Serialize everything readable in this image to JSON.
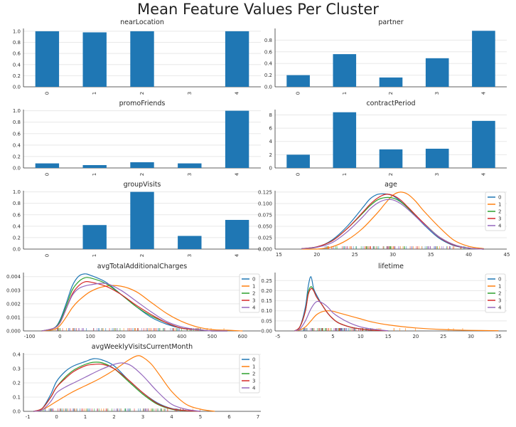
{
  "title": "Mean Feature Values Per Cluster",
  "colors": [
    "#1f77b4",
    "#ff7f0e",
    "#2ca02c",
    "#d62728",
    "#9467bd"
  ],
  "chart_data": [
    {
      "type": "bar",
      "title": "nearLocation",
      "categories": [
        "0",
        "1",
        "2",
        "3",
        "4"
      ],
      "values": [
        1.0,
        0.98,
        1.0,
        0.0,
        1.0
      ],
      "ylim": [
        0,
        1.05
      ],
      "yticks": [
        "0.0",
        "0.2",
        "0.4",
        "0.6",
        "0.8",
        "1.0"
      ],
      "grid": true
    },
    {
      "type": "bar",
      "title": "partner",
      "categories": [
        "0",
        "1",
        "2",
        "3",
        "4"
      ],
      "values": [
        0.2,
        0.56,
        0.16,
        0.49,
        0.96
      ],
      "ylim": [
        0,
        1.0
      ],
      "yticks": [
        "0.0",
        "0.2",
        "0.4",
        "0.6",
        "0.8"
      ],
      "grid": true
    },
    {
      "type": "bar",
      "title": "promoFriends",
      "categories": [
        "0",
        "1",
        "2",
        "3",
        "4"
      ],
      "values": [
        0.08,
        0.05,
        0.1,
        0.08,
        1.0
      ],
      "ylim": [
        0,
        1.02
      ],
      "yticks": [
        "0.0",
        "0.2",
        "0.4",
        "0.6",
        "0.8",
        "1.0"
      ],
      "grid": true
    },
    {
      "type": "bar",
      "title": "contractPeriod",
      "categories": [
        "0",
        "1",
        "2",
        "3",
        "4"
      ],
      "values": [
        2.0,
        8.4,
        2.8,
        2.9,
        7.1
      ],
      "ylim": [
        0,
        8.8
      ],
      "yticks": [
        "0",
        "2",
        "4",
        "6",
        "8"
      ],
      "grid": true
    },
    {
      "type": "bar",
      "title": "groupVisits",
      "categories": [
        "0",
        "1",
        "2",
        "3",
        "4"
      ],
      "values": [
        0.0,
        0.42,
        1.0,
        0.23,
        0.51
      ],
      "ylim": [
        0,
        1.02
      ],
      "yticks": [
        "0.0",
        "0.2",
        "0.4",
        "0.6",
        "0.8",
        "1.0"
      ],
      "grid": true
    },
    {
      "type": "line",
      "title": "age",
      "xlim": [
        14.5,
        45
      ],
      "xticks": [
        "15",
        "20",
        "25",
        "30",
        "35",
        "40",
        "45"
      ],
      "ylim": [
        0,
        0.128
      ],
      "yticks": [
        "0.000",
        "0.025",
        "0.050",
        "0.075",
        "0.100",
        "0.125"
      ],
      "legend": "right",
      "rug": true,
      "series": [
        {
          "name": "0",
          "peak": 29,
          "x": [
            18,
            20,
            22,
            24,
            26,
            27,
            28,
            29,
            30,
            31,
            32,
            34,
            36,
            38,
            40,
            42
          ],
          "y": [
            0.001,
            0.004,
            0.02,
            0.05,
            0.09,
            0.11,
            0.12,
            0.121,
            0.117,
            0.105,
            0.09,
            0.055,
            0.025,
            0.008,
            0.002,
            0.0
          ]
        },
        {
          "name": "1",
          "peak": 31,
          "x": [
            18,
            20,
            22,
            24,
            26,
            28,
            29,
            30,
            31,
            32,
            33,
            34,
            36,
            38,
            40,
            42
          ],
          "y": [
            0.0,
            0.0,
            0.005,
            0.02,
            0.045,
            0.08,
            0.1,
            0.118,
            0.125,
            0.12,
            0.105,
            0.085,
            0.05,
            0.02,
            0.006,
            0.001
          ]
        },
        {
          "name": "2",
          "peak": 29,
          "x": [
            18,
            20,
            22,
            24,
            26,
            27,
            28,
            29,
            30,
            31,
            32,
            34,
            36,
            38,
            40,
            42
          ],
          "y": [
            0.001,
            0.005,
            0.018,
            0.045,
            0.078,
            0.095,
            0.108,
            0.113,
            0.112,
            0.104,
            0.09,
            0.058,
            0.028,
            0.01,
            0.002,
            0.0
          ]
        },
        {
          "name": "3",
          "peak": 29.5,
          "x": [
            18,
            20,
            22,
            24,
            26,
            27,
            28,
            29,
            30,
            31,
            32,
            34,
            36,
            38,
            40,
            42
          ],
          "y": [
            0.001,
            0.005,
            0.018,
            0.045,
            0.08,
            0.098,
            0.112,
            0.12,
            0.118,
            0.108,
            0.092,
            0.058,
            0.027,
            0.009,
            0.002,
            0.0
          ]
        },
        {
          "name": "4",
          "peak": 29.5,
          "x": [
            18,
            20,
            22,
            24,
            26,
            27,
            28,
            29,
            30,
            31,
            32,
            34,
            36,
            38,
            40,
            42
          ],
          "y": [
            0.001,
            0.004,
            0.014,
            0.038,
            0.07,
            0.088,
            0.101,
            0.108,
            0.108,
            0.1,
            0.087,
            0.056,
            0.028,
            0.01,
            0.002,
            0.0
          ]
        }
      ]
    },
    {
      "type": "line",
      "title": "avgTotalAdditionalCharges",
      "xlim": [
        -120,
        660
      ],
      "xticks": [
        "-100",
        "0",
        "100",
        "200",
        "300",
        "400",
        "500",
        "600"
      ],
      "ylim": [
        0,
        0.0043
      ],
      "yticks": [
        "0.000",
        "0.001",
        "0.002",
        "0.003",
        "0.004"
      ],
      "legend": "right",
      "rug": true,
      "series": [
        {
          "name": "0",
          "x": [
            -60,
            -20,
            0,
            20,
            40,
            60,
            80,
            100,
            150,
            200,
            250,
            300,
            350,
            400,
            450,
            500,
            550
          ],
          "y": [
            0.0,
            0.0002,
            0.0008,
            0.002,
            0.0033,
            0.004,
            0.0042,
            0.0041,
            0.0036,
            0.0027,
            0.0018,
            0.001,
            0.0005,
            0.0002,
            0.0001,
            0.0,
            0.0
          ]
        },
        {
          "name": "1",
          "x": [
            -60,
            -20,
            0,
            20,
            40,
            60,
            100,
            150,
            200,
            250,
            300,
            350,
            400,
            450,
            500,
            550,
            600
          ],
          "y": [
            0.0,
            0.0001,
            0.0004,
            0.001,
            0.0017,
            0.0022,
            0.0029,
            0.0033,
            0.0033,
            0.0029,
            0.0021,
            0.0013,
            0.0007,
            0.0003,
            0.0001,
            5e-05,
            0.0
          ]
        },
        {
          "name": "2",
          "x": [
            -60,
            -20,
            0,
            20,
            40,
            60,
            80,
            100,
            150,
            200,
            250,
            300,
            350,
            400,
            450,
            500,
            550
          ],
          "y": [
            0.0,
            0.0002,
            0.0007,
            0.0018,
            0.003,
            0.0036,
            0.0039,
            0.0039,
            0.0035,
            0.0027,
            0.0018,
            0.0011,
            0.0006,
            0.0002,
            0.0001,
            0.0,
            0.0
          ]
        },
        {
          "name": "3",
          "x": [
            -60,
            -20,
            0,
            20,
            40,
            60,
            80,
            100,
            150,
            200,
            250,
            300,
            350,
            400,
            450,
            500,
            550
          ],
          "y": [
            0.0,
            0.0002,
            0.0006,
            0.0016,
            0.0027,
            0.0033,
            0.0036,
            0.0036,
            0.0033,
            0.0027,
            0.0019,
            0.0012,
            0.0006,
            0.0002,
            0.0001,
            0.0,
            0.0
          ]
        },
        {
          "name": "4",
          "x": [
            -60,
            -20,
            0,
            20,
            40,
            60,
            80,
            100,
            150,
            200,
            250,
            300,
            350,
            400,
            450,
            500,
            550
          ],
          "y": [
            0.0,
            0.0002,
            0.0006,
            0.0016,
            0.0026,
            0.0031,
            0.0033,
            0.0034,
            0.0035,
            0.003,
            0.0022,
            0.0014,
            0.0007,
            0.0003,
            0.0001,
            0.0,
            0.0
          ]
        }
      ]
    },
    {
      "type": "line",
      "title": "lifetime",
      "xlim": [
        -5.5,
        36.5
      ],
      "xticks": [
        "-5",
        "0",
        "5",
        "10",
        "15",
        "20",
        "25",
        "30",
        "35"
      ],
      "ylim": [
        0,
        0.29
      ],
      "yticks": [
        "0.00",
        "0.05",
        "0.10",
        "0.15",
        "0.20",
        "0.25"
      ],
      "legend": "right",
      "rug": true,
      "series": [
        {
          "name": "0",
          "x": [
            -2,
            -1,
            0,
            0.5,
            1,
            1.5,
            2,
            3,
            4,
            5,
            6,
            8,
            10,
            12,
            15
          ],
          "y": [
            0.0,
            0.02,
            0.12,
            0.22,
            0.27,
            0.21,
            0.18,
            0.13,
            0.09,
            0.06,
            0.04,
            0.02,
            0.01,
            0.004,
            0.0
          ]
        },
        {
          "name": "1",
          "x": [
            -2,
            -1,
            0,
            1,
            2,
            3,
            4,
            5,
            6,
            8,
            10,
            12,
            15,
            20,
            25,
            30,
            35
          ],
          "y": [
            0.0,
            0.005,
            0.02,
            0.05,
            0.08,
            0.095,
            0.1,
            0.098,
            0.09,
            0.075,
            0.06,
            0.045,
            0.03,
            0.015,
            0.007,
            0.003,
            0.001
          ]
        },
        {
          "name": "2",
          "x": [
            -2,
            -1,
            0,
            0.5,
            1,
            1.5,
            2,
            3,
            4,
            5,
            6,
            8,
            10,
            12,
            15
          ],
          "y": [
            0.0,
            0.02,
            0.1,
            0.19,
            0.22,
            0.2,
            0.17,
            0.13,
            0.09,
            0.06,
            0.04,
            0.02,
            0.01,
            0.004,
            0.0
          ]
        },
        {
          "name": "3",
          "x": [
            -2,
            -1,
            0,
            0.5,
            1,
            1.5,
            2,
            3,
            4,
            5,
            6,
            8,
            10,
            12,
            15
          ],
          "y": [
            0.0,
            0.02,
            0.1,
            0.18,
            0.21,
            0.2,
            0.17,
            0.13,
            0.09,
            0.06,
            0.04,
            0.02,
            0.01,
            0.004,
            0.0
          ]
        },
        {
          "name": "4",
          "x": [
            -2,
            -1,
            0,
            1,
            2,
            3,
            4,
            5,
            6,
            8,
            10,
            12,
            15
          ],
          "y": [
            0.0,
            0.01,
            0.05,
            0.11,
            0.145,
            0.14,
            0.12,
            0.09,
            0.07,
            0.04,
            0.02,
            0.01,
            0.0
          ]
        }
      ]
    },
    {
      "type": "line",
      "title": "avgWeeklyVisitsCurrentMonth",
      "xlim": [
        -1.15,
        7.1
      ],
      "xticks": [
        "-1",
        "0",
        "1",
        "2",
        "3",
        "4",
        "5",
        "6",
        "7"
      ],
      "ylim": [
        0,
        0.41
      ],
      "yticks": [
        "0.0",
        "0.1",
        "0.2",
        "0.3",
        "0.4"
      ],
      "legend": "right",
      "rug": true,
      "series": [
        {
          "name": "0",
          "x": [
            -0.8,
            -0.5,
            -0.2,
            0,
            0.3,
            0.6,
            1,
            1.3,
            1.6,
            2,
            2.5,
            3,
            3.5,
            4,
            4.5,
            5
          ],
          "y": [
            0.0,
            0.02,
            0.12,
            0.21,
            0.28,
            0.32,
            0.35,
            0.37,
            0.36,
            0.32,
            0.22,
            0.13,
            0.06,
            0.02,
            0.005,
            0.0
          ]
        },
        {
          "name": "1",
          "x": [
            -0.8,
            -0.5,
            0,
            0.5,
            1,
            1.5,
            2,
            2.5,
            2.8,
            3,
            3.3,
            3.6,
            4,
            4.5,
            5,
            5.5
          ],
          "y": [
            0.0,
            0.01,
            0.07,
            0.13,
            0.18,
            0.23,
            0.29,
            0.36,
            0.39,
            0.38,
            0.33,
            0.25,
            0.14,
            0.05,
            0.015,
            0.0
          ]
        },
        {
          "name": "2",
          "x": [
            -0.8,
            -0.5,
            -0.2,
            0,
            0.3,
            0.6,
            1,
            1.3,
            1.6,
            2,
            2.5,
            3,
            3.5,
            4,
            4.5,
            5
          ],
          "y": [
            0.0,
            0.02,
            0.1,
            0.17,
            0.24,
            0.29,
            0.33,
            0.345,
            0.34,
            0.3,
            0.21,
            0.12,
            0.05,
            0.015,
            0.004,
            0.0
          ]
        },
        {
          "name": "3",
          "x": [
            -0.8,
            -0.5,
            -0.2,
            0,
            0.3,
            0.6,
            1,
            1.3,
            1.6,
            2,
            2.5,
            3,
            3.5,
            4,
            4.5,
            5
          ],
          "y": [
            0.0,
            0.02,
            0.1,
            0.17,
            0.23,
            0.28,
            0.32,
            0.33,
            0.33,
            0.3,
            0.22,
            0.13,
            0.055,
            0.018,
            0.005,
            0.0
          ]
        },
        {
          "name": "4",
          "x": [
            -0.8,
            -0.5,
            -0.2,
            0,
            0.3,
            0.6,
            1,
            1.5,
            2,
            2.3,
            2.6,
            3,
            3.5,
            4,
            4.5,
            5
          ],
          "y": [
            0.0,
            0.01,
            0.07,
            0.13,
            0.17,
            0.2,
            0.24,
            0.29,
            0.33,
            0.34,
            0.32,
            0.25,
            0.14,
            0.05,
            0.015,
            0.0
          ]
        }
      ]
    }
  ]
}
